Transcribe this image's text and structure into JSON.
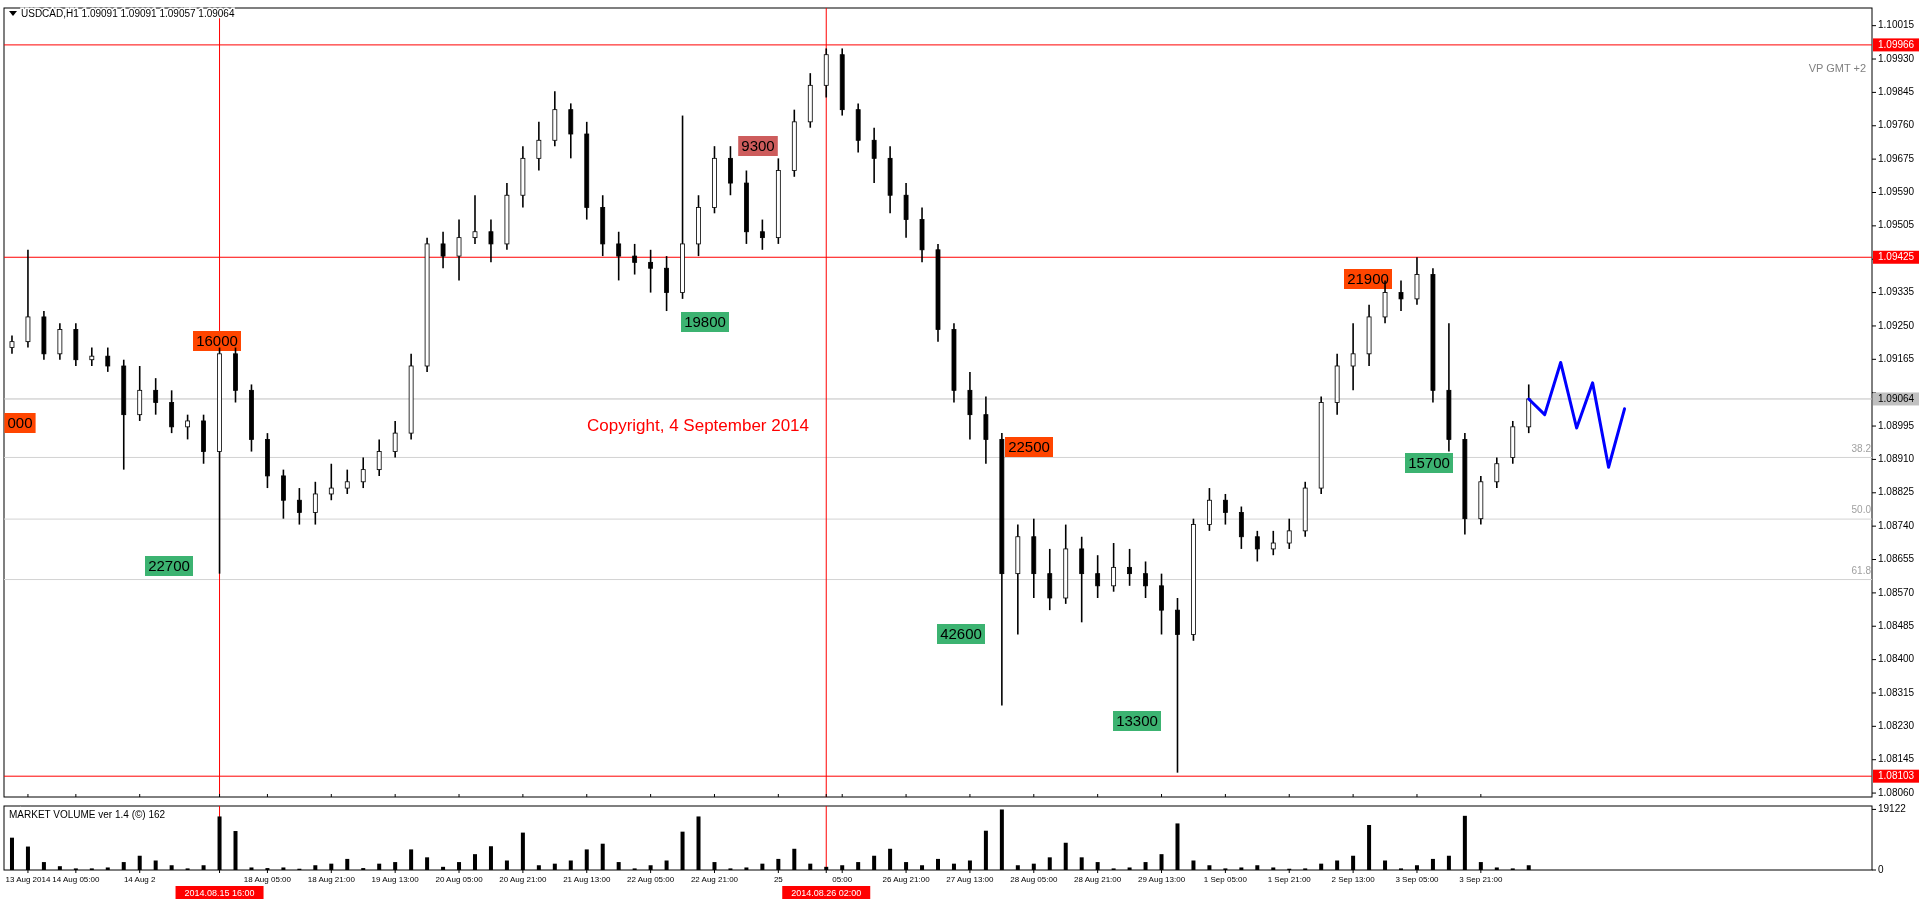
{
  "chart_data": [
    {
      "type": "candlestick",
      "title": "USDCAD,H1  1.09091 1.09091 1.09057 1.09064",
      "tick_labels": "y",
      "ylim": [
        1.0805,
        1.1006
      ],
      "yticks": [
        {
          "value": 1.10015,
          "label": "1.10015"
        },
        {
          "value": 1.0993,
          "label": "1.09930"
        },
        {
          "value": 1.09845,
          "label": "1.09845"
        },
        {
          "value": 1.0976,
          "label": "1.09760"
        },
        {
          "value": 1.09675,
          "label": "1.09675"
        },
        {
          "value": 1.0959,
          "label": "1.09590"
        },
        {
          "value": 1.09505,
          "label": "1.09505"
        },
        {
          "value": 1.0942,
          "label": null
        },
        {
          "value": 1.09335,
          "label": "1.09335"
        },
        {
          "value": 1.0925,
          "label": "1.09250"
        },
        {
          "value": 1.09165,
          "label": "1.09165"
        },
        {
          "value": 1.0908,
          "label": null
        },
        {
          "value": 1.08995,
          "label": "1.08995"
        },
        {
          "value": 1.0891,
          "label": "1.08910"
        },
        {
          "value": 1.08825,
          "label": "1.08825"
        },
        {
          "value": 1.0874,
          "label": "1.08740"
        },
        {
          "value": 1.08655,
          "label": "1.08655"
        },
        {
          "value": 1.0857,
          "label": "1.08570"
        },
        {
          "value": 1.08485,
          "label": "1.08485"
        },
        {
          "value": 1.084,
          "label": "1.08400"
        },
        {
          "value": 1.08315,
          "label": "1.08315"
        },
        {
          "value": 1.0823,
          "label": "1.08230"
        },
        {
          "value": 1.08145,
          "label": "1.08145"
        },
        {
          "value": 1.0806,
          "label": "1.08060"
        }
      ],
      "categories": [
        null,
        "13 Aug 2014",
        null,
        null,
        "14 Aug 05:00",
        null,
        null,
        null,
        "14 Aug 2",
        null,
        null,
        null,
        null,
        "2014.08.15 16:00",
        null,
        null,
        "18 Aug 05:00",
        null,
        null,
        null,
        "18 Aug 21:00",
        null,
        null,
        null,
        "19 Aug 13:00",
        null,
        null,
        null,
        "20 Aug 05:00",
        null,
        null,
        null,
        "20 Aug 21:00",
        null,
        null,
        null,
        "21 Aug 13:00",
        null,
        null,
        null,
        "22 Aug 05:00",
        null,
        null,
        null,
        "22 Aug 21:00",
        null,
        null,
        null,
        "25",
        null,
        null,
        "2014.08.26 02:00",
        "05:00",
        null,
        null,
        null,
        "26 Aug 21:00",
        null,
        null,
        null,
        "27 Aug 13:00",
        null,
        null,
        null,
        "28 Aug 05:00",
        null,
        null,
        null,
        "28 Aug 21:00",
        null,
        null,
        null,
        "29 Aug 13:00",
        null,
        null,
        null,
        "1 Sep 05:00",
        null,
        null,
        null,
        "1 Sep 21:00",
        null,
        null,
        null,
        "2 Sep 13:00",
        null,
        null,
        null,
        "3 Sep 05:00",
        null,
        null,
        null,
        "3 Sep 21:00",
        null,
        null,
        null,
        null,
        null,
        null,
        null,
        null,
        null,
        null,
        null,
        null,
        null,
        null,
        null,
        null,
        null,
        null,
        null,
        null,
        null,
        null,
        null,
        null
      ],
      "ohlc": [
        [
          1.09195,
          1.09226,
          1.09179,
          1.0921
        ],
        [
          1.0921,
          1.09444,
          1.09195,
          1.09273
        ],
        [
          1.09273,
          1.09288,
          1.09164,
          1.09179
        ],
        [
          1.09179,
          1.09257,
          1.09164,
          1.09241
        ],
        [
          1.09241,
          1.09257,
          1.09148,
          1.09164
        ],
        [
          1.09164,
          1.09195,
          1.09148,
          1.09173
        ],
        [
          1.09173,
          1.09195,
          1.09133,
          1.09148
        ],
        [
          1.09148,
          1.09164,
          1.08884,
          1.09024
        ],
        [
          1.09024,
          1.09148,
          1.09008,
          1.09086
        ],
        [
          1.09086,
          1.09117,
          1.09024,
          1.09055
        ],
        [
          1.09055,
          1.09086,
          1.08977,
          1.08993
        ],
        [
          1.08993,
          1.09024,
          1.08961,
          1.09008
        ],
        [
          1.09008,
          1.09024,
          1.08899,
          1.0893
        ],
        [
          1.0893,
          1.09195,
          1.08619,
          1.09179
        ],
        [
          1.09179,
          1.09195,
          1.09055,
          1.09086
        ],
        [
          1.09086,
          1.09101,
          1.0893,
          1.08961
        ],
        [
          1.08961,
          1.08977,
          1.08837,
          1.08868
        ],
        [
          1.08868,
          1.08884,
          1.08759,
          1.08806
        ],
        [
          1.08806,
          1.08837,
          1.08744,
          1.08775
        ],
        [
          1.08775,
          1.08853,
          1.08744,
          1.08822
        ],
        [
          1.08822,
          1.08899,
          1.08806,
          1.08837
        ],
        [
          1.08837,
          1.08884,
          1.08822,
          1.08853
        ],
        [
          1.08853,
          1.08915,
          1.08837,
          1.08884
        ],
        [
          1.08884,
          1.08961,
          1.08868,
          1.0893
        ],
        [
          1.0893,
          1.09008,
          1.08915,
          1.08977
        ],
        [
          1.08977,
          1.09179,
          1.08961,
          1.09148
        ],
        [
          1.09148,
          1.09475,
          1.09133,
          1.09459
        ],
        [
          1.09459,
          1.0949,
          1.09397,
          1.09428
        ],
        [
          1.09428,
          1.09521,
          1.09366,
          1.09475
        ],
        [
          1.09475,
          1.09583,
          1.09459,
          1.0949
        ],
        [
          1.0949,
          1.09521,
          1.09412,
          1.09459
        ],
        [
          1.09459,
          1.09614,
          1.09444,
          1.09583
        ],
        [
          1.09583,
          1.09708,
          1.09552,
          1.09677
        ],
        [
          1.09677,
          1.0977,
          1.09646,
          1.09723
        ],
        [
          1.09723,
          1.09848,
          1.09708,
          1.09801
        ],
        [
          1.09801,
          1.09817,
          1.09677,
          1.09739
        ],
        [
          1.09739,
          1.0977,
          1.09521,
          1.09552
        ],
        [
          1.09552,
          1.09583,
          1.09428,
          1.09459
        ],
        [
          1.09459,
          1.0949,
          1.09366,
          1.09428
        ],
        [
          1.09428,
          1.09459,
          1.09381,
          1.09412
        ],
        [
          1.09412,
          1.09444,
          1.09335,
          1.09397
        ],
        [
          1.09397,
          1.09428,
          1.09288,
          1.09335
        ],
        [
          1.09335,
          1.09786,
          1.09319,
          1.09459
        ],
        [
          1.09459,
          1.09583,
          1.09428,
          1.09552
        ],
        [
          1.09552,
          1.09708,
          1.09537,
          1.09677
        ],
        [
          1.09677,
          1.09708,
          1.09583,
          1.09614
        ],
        [
          1.09614,
          1.09646,
          1.09459,
          1.0949
        ],
        [
          1.0949,
          1.09521,
          1.09444,
          1.09475
        ],
        [
          1.09475,
          1.09677,
          1.09459,
          1.09646
        ],
        [
          1.09646,
          1.09801,
          1.0963,
          1.0977
        ],
        [
          1.0977,
          1.09894,
          1.09755,
          1.09863
        ],
        [
          1.09863,
          1.09957,
          1.09832,
          1.09941
        ],
        [
          1.09941,
          1.09957,
          1.09786,
          1.09801
        ],
        [
          1.09801,
          1.09817,
          1.09692,
          1.09723
        ],
        [
          1.09723,
          1.09755,
          1.09614,
          1.09677
        ],
        [
          1.09677,
          1.09708,
          1.09537,
          1.09583
        ],
        [
          1.09583,
          1.09614,
          1.09475,
          1.09521
        ],
        [
          1.09521,
          1.09552,
          1.09412,
          1.09444
        ],
        [
          1.09444,
          1.09459,
          1.0921,
          1.09241
        ],
        [
          1.09241,
          1.09257,
          1.09055,
          1.09086
        ],
        [
          1.09086,
          1.09133,
          1.08961,
          1.09024
        ],
        [
          1.09024,
          1.0907,
          1.08899,
          1.08961
        ],
        [
          1.08961,
          1.08977,
          1.08283,
          1.08619
        ],
        [
          1.08619,
          1.08744,
          1.08464,
          1.08713
        ],
        [
          1.08713,
          1.08759,
          1.08557,
          1.08619
        ],
        [
          1.08619,
          1.08682,
          1.08526,
          1.08557
        ],
        [
          1.08557,
          1.08744,
          1.08542,
          1.08682
        ],
        [
          1.08682,
          1.08713,
          1.08495,
          1.08619
        ],
        [
          1.08619,
          1.08666,
          1.08557,
          1.08588
        ],
        [
          1.08588,
          1.08697,
          1.08573,
          1.08635
        ],
        [
          1.08635,
          1.08682,
          1.08588,
          1.08619
        ],
        [
          1.08619,
          1.0865,
          1.08557,
          1.08588
        ],
        [
          1.08588,
          1.08619,
          1.08464,
          1.08526
        ],
        [
          1.08526,
          1.08557,
          1.08112,
          1.08464
        ],
        [
          1.08464,
          1.08759,
          1.08448,
          1.08744
        ],
        [
          1.08744,
          1.08837,
          1.08728,
          1.08806
        ],
        [
          1.08806,
          1.08822,
          1.08744,
          1.08775
        ],
        [
          1.08775,
          1.0879,
          1.08682,
          1.08713
        ],
        [
          1.08713,
          1.08728,
          1.0865,
          1.08682
        ],
        [
          1.08682,
          1.08728,
          1.08666,
          1.08697
        ],
        [
          1.08697,
          1.08759,
          1.08682,
          1.08728
        ],
        [
          1.08728,
          1.08853,
          1.08713,
          1.08837
        ],
        [
          1.08837,
          1.0907,
          1.08822,
          1.09055
        ],
        [
          1.09055,
          1.09179,
          1.09024,
          1.09148
        ],
        [
          1.09148,
          1.09257,
          1.09086,
          1.09179
        ],
        [
          1.09179,
          1.09304,
          1.09148,
          1.09273
        ],
        [
          1.09273,
          1.09366,
          1.09257,
          1.09335
        ],
        [
          1.09335,
          1.09366,
          1.09288,
          1.09319
        ],
        [
          1.09319,
          1.09425,
          1.09304,
          1.09381
        ],
        [
          1.09381,
          1.09397,
          1.09055,
          1.09086
        ],
        [
          1.09086,
          1.09257,
          1.0893,
          1.08961
        ],
        [
          1.08961,
          1.08977,
          1.08719,
          1.08759
        ],
        [
          1.08759,
          1.08868,
          1.08744,
          1.08853
        ],
        [
          1.08853,
          1.08915,
          1.08837,
          1.08899
        ],
        [
          1.08915,
          1.09008,
          1.08899,
          1.08993
        ],
        [
          1.08993,
          1.09101,
          1.08977,
          1.09064
        ],
        null,
        null,
        null,
        null,
        null,
        null,
        null,
        null,
        null,
        null,
        null,
        null,
        null,
        null,
        null,
        null,
        null,
        null,
        null,
        null,
        null
      ],
      "series": [
        {
          "type": "line",
          "color": "#0000ff",
          "values": [
            null,
            null,
            null,
            null,
            null,
            null,
            null,
            null,
            null,
            null,
            null,
            null,
            null,
            null,
            null,
            null,
            null,
            null,
            null,
            null,
            null,
            null,
            null,
            null,
            null,
            null,
            null,
            null,
            null,
            null,
            null,
            null,
            null,
            null,
            null,
            null,
            null,
            null,
            null,
            null,
            null,
            null,
            null,
            null,
            null,
            null,
            null,
            null,
            null,
            null,
            null,
            null,
            null,
            null,
            null,
            null,
            null,
            null,
            null,
            null,
            null,
            null,
            null,
            null,
            null,
            null,
            null,
            null,
            null,
            null,
            null,
            null,
            null,
            null,
            null,
            null,
            null,
            null,
            null,
            null,
            null,
            null,
            null,
            null,
            null,
            null,
            null,
            null,
            null,
            null,
            null,
            null,
            null,
            null,
            null,
            1.09064,
            1.09024,
            1.09157,
            1.0899,
            1.09105,
            1.0889,
            1.09039,
            null,
            null,
            null,
            null,
            null,
            null,
            null,
            null,
            null,
            null,
            null,
            null,
            null,
            null,
            null
          ]
        }
      ],
      "ref_lines": [
        {
          "axis": "y",
          "value": 1.09966,
          "label": "1.09966",
          "color": "#ff0000"
        },
        {
          "axis": "y",
          "value": 1.09425,
          "label": "1.09425",
          "color": "#ff0000"
        },
        {
          "axis": "y",
          "value": 1.08103,
          "label": "1.08103",
          "color": "#ff0000"
        },
        {
          "axis": "y",
          "value": 1.09064,
          "label": "1.09064",
          "color": "#c0c0c0"
        },
        {
          "axis": "y",
          "value": 1.08915,
          "color": "#d3d3d3"
        },
        {
          "axis": "y",
          "value": 1.08758,
          "color": "#d3d3d3"
        },
        {
          "axis": "y",
          "value": 1.08604,
          "color": "#d3d3d3"
        },
        {
          "axis": "x",
          "value": "2014.08.15 16:00",
          "color": "#ff0000"
        },
        {
          "axis": "x",
          "value": "2014.08.26 02:00",
          "color": "#ff0000"
        }
      ],
      "annotations": [
        "Copyright, 4 September 2014",
        "VP GMT +2",
        "16000",
        "22700",
        "19800",
        "9300",
        "22500",
        "42600",
        "13300",
        "21900",
        "15700",
        "000",
        "38.2",
        "50.0",
        "61.8"
      ]
    },
    {
      "type": "bar",
      "title": "MARKET VOLUME ver 1.4 (©) 162",
      "color": "#000000",
      "ylim": [
        0,
        20200
      ],
      "yticks": [
        0,
        19122
      ],
      "categories": [
        null,
        "13 Aug 2014",
        null,
        null,
        "14 Aug 05:00",
        null,
        null,
        null,
        "14 Aug 2",
        null,
        null,
        null,
        null,
        "2014.08.15 16:00",
        null,
        null,
        "18 Aug 05:00",
        null,
        null,
        null,
        "18 Aug 21:00",
        null,
        null,
        null,
        "19 Aug 13:00",
        null,
        null,
        null,
        "20 Aug 05:00",
        null,
        null,
        null,
        "20 Aug 21:00",
        null,
        null,
        null,
        "21 Aug 13:00",
        null,
        null,
        null,
        "22 Aug 05:00",
        null,
        null,
        null,
        "22 Aug 21:00",
        null,
        null,
        null,
        "25",
        null,
        null,
        "2014.08.26 02:00",
        "05:00",
        null,
        null,
        null,
        "26 Aug 21:00",
        null,
        null,
        null,
        "27 Aug 13:00",
        null,
        null,
        null,
        "28 Aug 05:00",
        null,
        null,
        null,
        "28 Aug 21:00",
        null,
        null,
        null,
        "29 Aug 13:00",
        null,
        null,
        null,
        "1 Sep 05:00",
        null,
        null,
        null,
        "1 Sep 21:00",
        null,
        null,
        null,
        "2 Sep 13:00",
        null,
        null,
        null,
        "3 Sep 05:00",
        null,
        null,
        null,
        "3 Sep 21:00",
        null,
        null,
        null,
        null,
        null,
        null,
        null,
        null,
        null,
        null,
        null,
        null,
        null,
        null,
        null,
        null,
        null,
        null,
        null,
        null,
        null,
        null,
        null,
        null
      ],
      "ref_lines": [
        {
          "axis": "x",
          "value": "2014.08.15 16:00",
          "color": "#ff0000"
        },
        {
          "axis": "x",
          "value": "2014.08.26 02:00",
          "color": "#ff0000"
        }
      ],
      "values": [
        10200,
        7400,
        2500,
        1200,
        500,
        500,
        800,
        2500,
        4500,
        3000,
        1500,
        500,
        1500,
        16900,
        12300,
        800,
        600,
        800,
        400,
        1500,
        2000,
        3500,
        600,
        2000,
        2500,
        6500,
        4000,
        1000,
        2500,
        5000,
        7500,
        3000,
        11800,
        1500,
        2000,
        3000,
        6500,
        8300,
        2500,
        500,
        1500,
        3000,
        12100,
        16900,
        2500,
        500,
        800,
        2000,
        3500,
        6700,
        2000,
        1000,
        1500,
        2500,
        4500,
        6700,
        2500,
        1500,
        3500,
        2000,
        3000,
        12400,
        19100,
        1500,
        2000,
        4000,
        8600,
        4000,
        2500,
        500,
        800,
        2500,
        5000,
        14700,
        3000,
        1500,
        500,
        800,
        1500,
        800,
        400,
        500,
        2000,
        3000,
        4500,
        14200,
        3000,
        500,
        1500,
        3500,
        4500,
        17100,
        2500,
        800,
        500,
        1500,
        null,
        null,
        null,
        null,
        null,
        null,
        null,
        null,
        null,
        null,
        null,
        null,
        null,
        null,
        null,
        null,
        null,
        null,
        null,
        null,
        null
      ]
    }
  ]
}
